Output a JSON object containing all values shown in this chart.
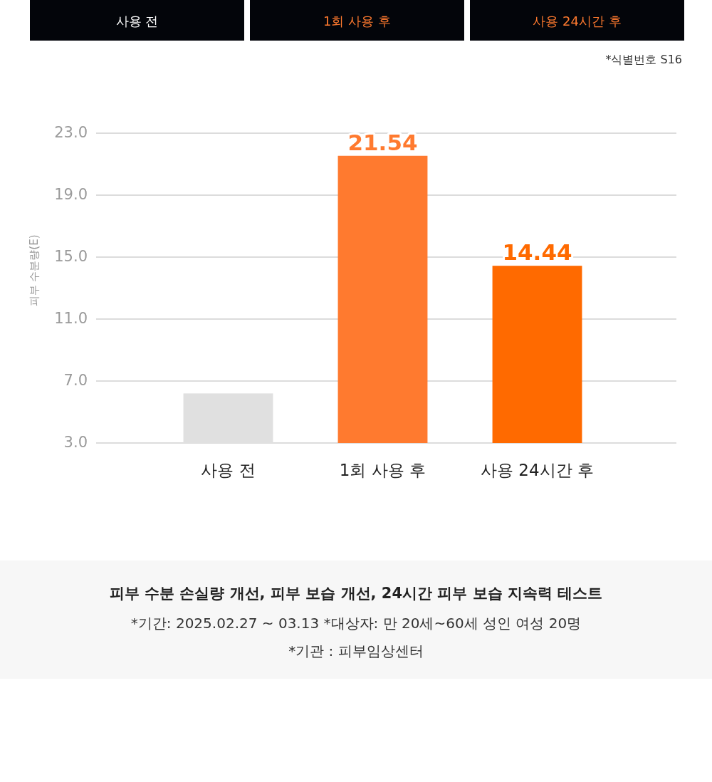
{
  "chart_data": {
    "type": "bar",
    "title": "피부 수분 손실량 개선, 피부 보습 개선, 24시간 피부 보습 지속력 테스트",
    "ylabel": "피부 수분량(E)",
    "categories": [
      "사용 전",
      "1회 사용 후",
      "사용 24시간 후"
    ],
    "values": [
      6.2,
      21.54,
      14.44
    ],
    "colors": [
      "#e0e0e0",
      "#ff7a2f",
      "#ff6a00"
    ],
    "value_labels": [
      null,
      "21.54",
      "14.44"
    ],
    "ylim": [
      3,
      23
    ],
    "yticks": [
      {
        "value": 3,
        "label": "3.0"
      },
      {
        "value": 7,
        "label": "7.0"
      },
      {
        "value": 11,
        "label": "11.0"
      },
      {
        "value": 15,
        "label": "15.0"
      },
      {
        "value": 19,
        "label": "19.0"
      },
      {
        "value": 23,
        "label": "23.0"
      }
    ],
    "grid": "y",
    "annotations": [
      "사용 전",
      "1회 사용 후",
      "사용 24시간 후",
      "*식별번호 S16",
      "*기간: 2025.02.27 ~ 03.13  *대상자: 만 20세~60세 성인 여성 20명",
      "*기관 : 피부임상센터"
    ]
  }
}
